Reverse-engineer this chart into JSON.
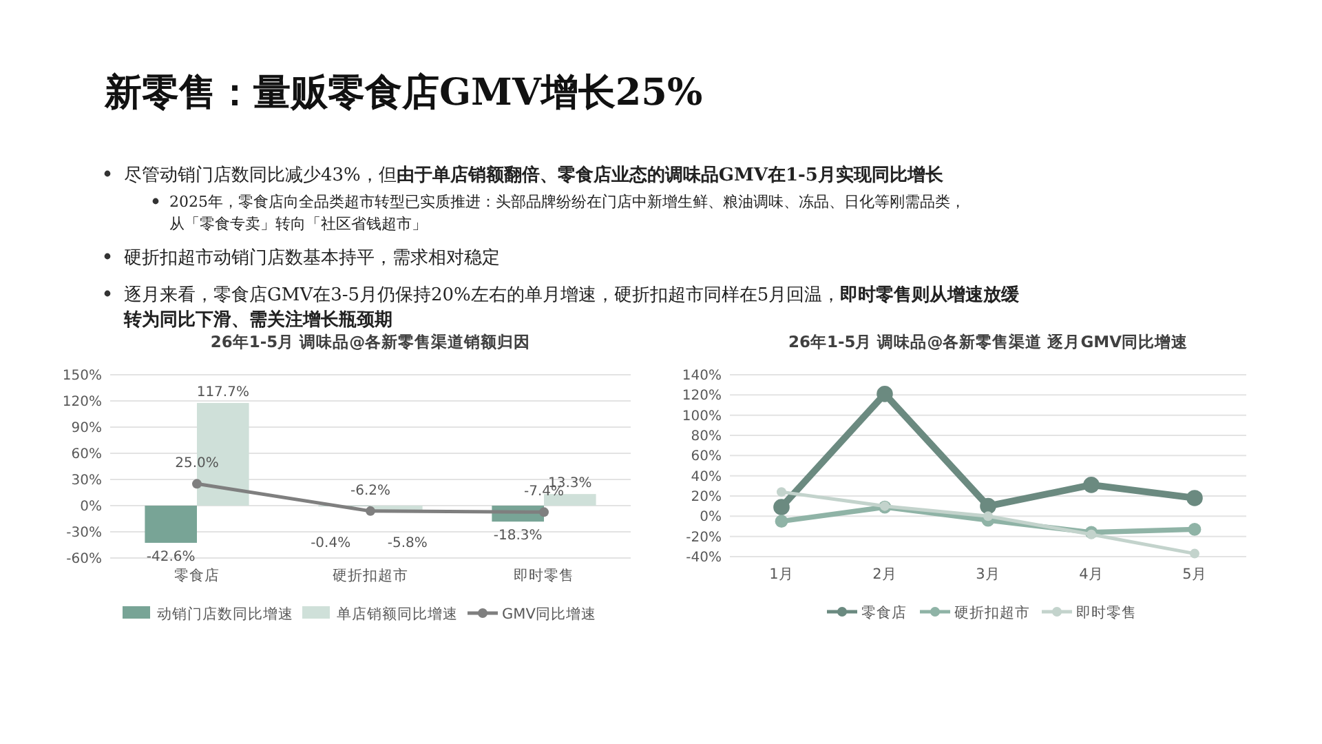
{
  "chart_data": [
    {
      "type": "other",
      "title": "新零售：量贩零食店GMV增长25%",
      "annotations": [
        "尽管动销门店数同比减少43%，但",
        "由于单店销额翻倍、零食店业态的调味品GMV在1-5月实现同比增长",
        "2025年，零食店向全品类超市转型已实质推进：头部品牌纷纷在门店中新增生鲜、粮油调味、冻品、日化等刚需品类，",
        "从「零食专卖」转向「社区省钱超市」",
        "硬折扣超市动销门店数基本持平，需求相对稳定",
        "逐月来看，零食店GMV在3-5月仍保持20%左右的单月增速，硬折扣超市同样在5月回温，",
        "即时零售则从增速放缓",
        "转为同比下滑、需关注增长瓶颈期"
      ]
    },
    {
      "type": "bar",
      "title": "26年1-5月 调味品@各新零售渠道销额归因",
      "categories": [
        "零食店",
        "硬折扣超市",
        "即时零售"
      ],
      "series": [
        {
          "name": "动销门店数同比增速",
          "color": "#78a496",
          "values": [
            -42.6,
            -0.4,
            -18.3
          ],
          "value_labels": [
            "-42.6%",
            "-0.4%",
            "-18.3%"
          ]
        },
        {
          "name": "单店销额同比增速",
          "color": "#cfe0d9",
          "values": [
            117.7,
            -5.8,
            13.3
          ],
          "value_labels": [
            "117.7%",
            "-5.8%",
            "13.3%"
          ]
        },
        {
          "name": "GMV同比增速",
          "type": "line",
          "color": "#7f7f7f",
          "marker": "circle",
          "values": [
            25.0,
            -6.2,
            -7.4
          ],
          "value_labels": [
            "25.0%",
            "-6.2%",
            "-7.4%"
          ]
        }
      ],
      "ylim": [
        -60,
        150
      ],
      "yticks": [
        {
          "value": -60,
          "label": "-60%"
        },
        {
          "value": -30,
          "label": "-30%"
        },
        {
          "value": 0,
          "label": "0%"
        },
        {
          "value": 30,
          "label": "30%"
        },
        {
          "value": 60,
          "label": "60%"
        },
        {
          "value": 90,
          "label": "90%"
        },
        {
          "value": 120,
          "label": "120%"
        },
        {
          "value": 150,
          "label": "150%"
        }
      ],
      "grid": "y",
      "legend": "bottom"
    },
    {
      "type": "line",
      "title": "26年1-5月 调味品@各新零售渠道 逐月GMV同比增速",
      "categories": [
        "1月",
        "2月",
        "3月",
        "4月",
        "5月"
      ],
      "series": [
        {
          "name": "零食店",
          "color": "#6b8a80",
          "values": [
            9,
            121,
            10,
            31,
            18
          ]
        },
        {
          "name": "硬折扣超市",
          "color": "#8fb3a6",
          "values": [
            -5,
            9,
            -4,
            -16,
            -13
          ]
        },
        {
          "name": "即时零售",
          "color": "#c3d3cc",
          "values": [
            24,
            10,
            0,
            -18,
            -37
          ]
        }
      ],
      "ylim": [
        -40,
        140
      ],
      "yticks": [
        {
          "value": -40,
          "label": "-40%"
        },
        {
          "value": -20,
          "label": "-20%"
        },
        {
          "value": 0,
          "label": "0%"
        },
        {
          "value": 20,
          "label": "20%"
        },
        {
          "value": 40,
          "label": "40%"
        },
        {
          "value": 60,
          "label": "60%"
        },
        {
          "value": 80,
          "label": "80%"
        },
        {
          "value": 100,
          "label": "100%"
        },
        {
          "value": 120,
          "label": "120%"
        },
        {
          "value": 140,
          "label": "140%"
        }
      ],
      "grid": "y",
      "marker": "circle",
      "legend": "bottom"
    }
  ]
}
